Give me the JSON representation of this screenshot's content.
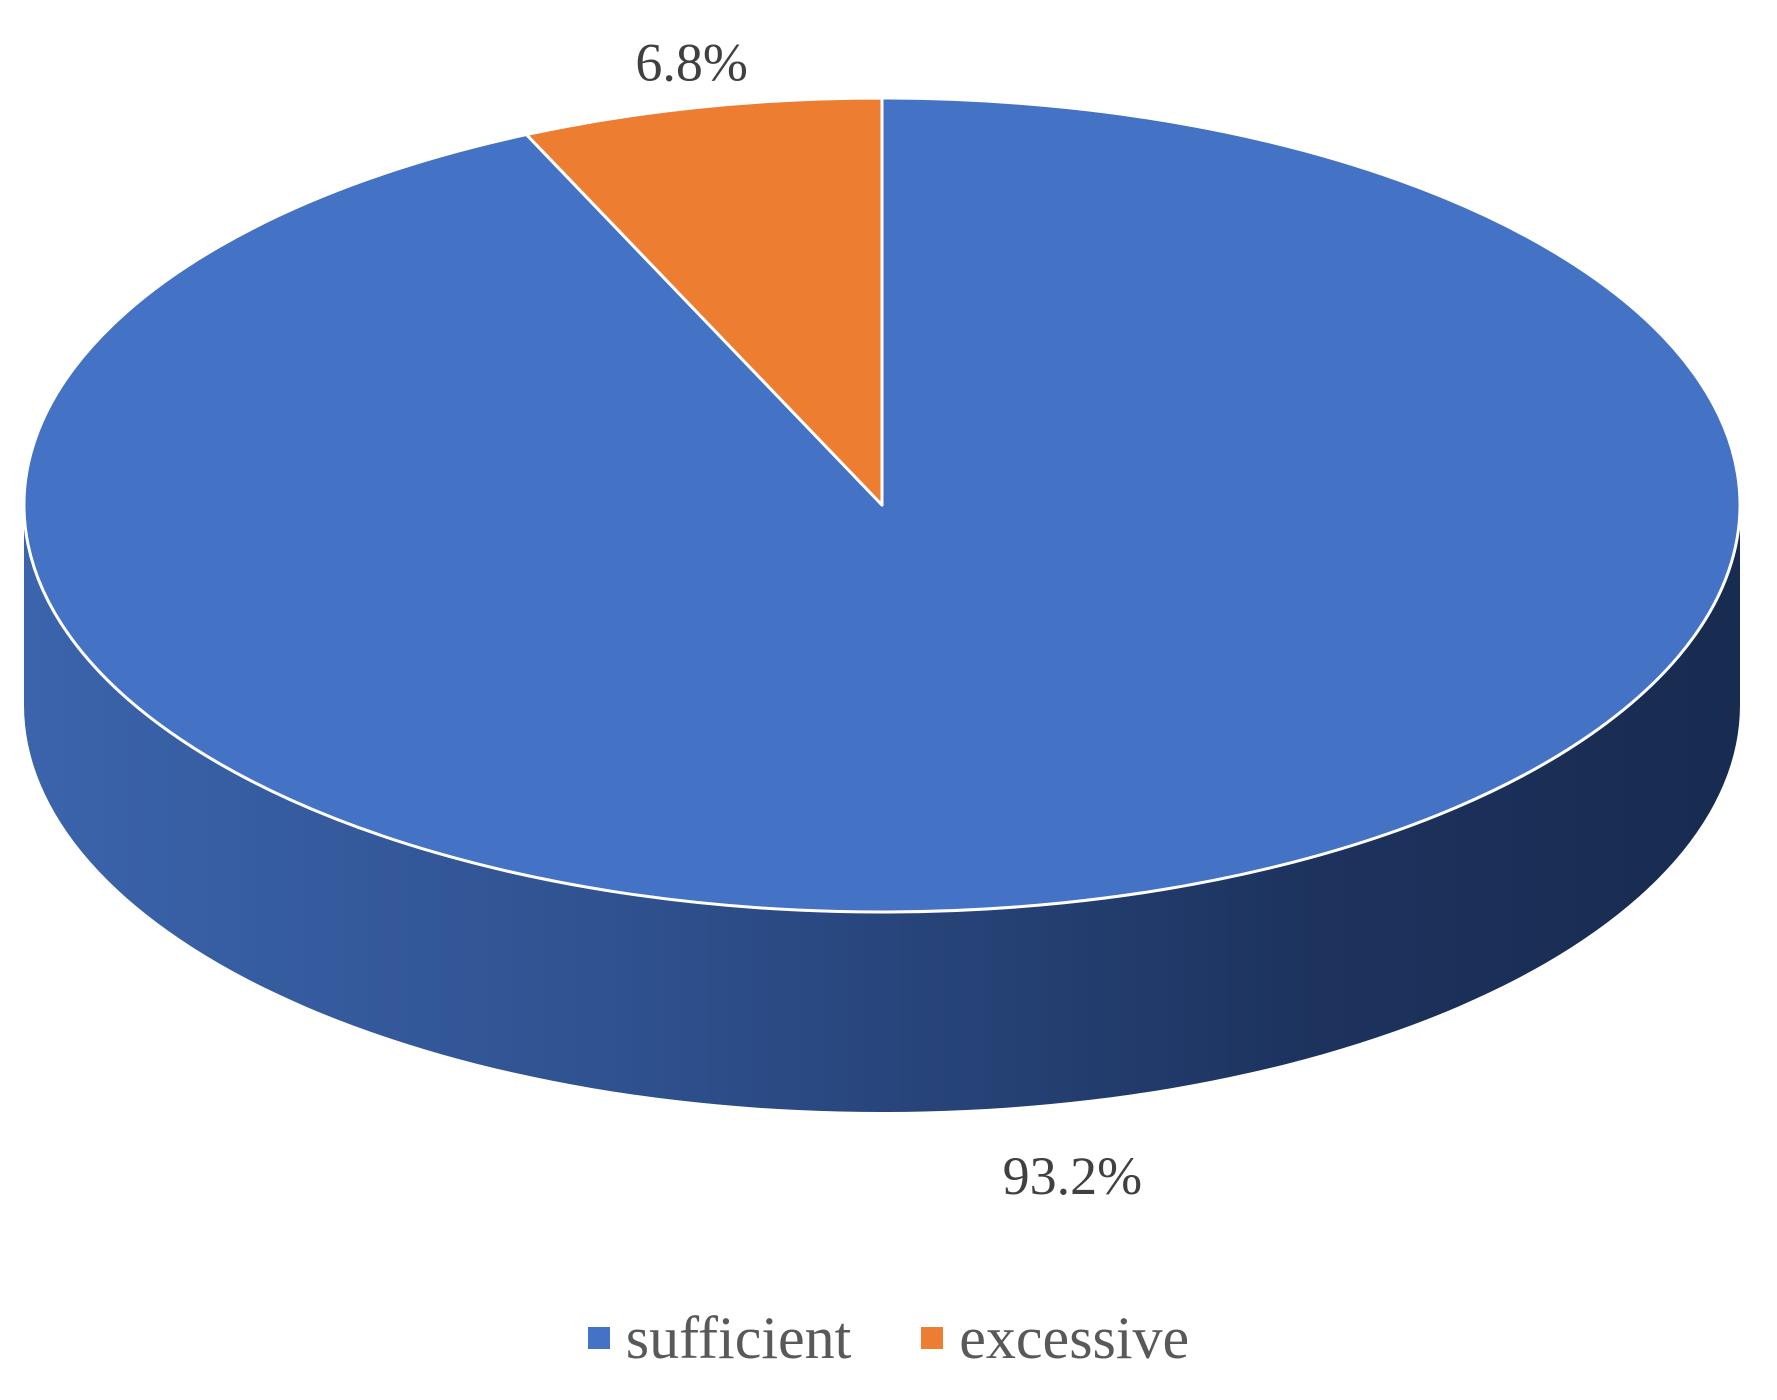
{
  "chart_data": {
    "type": "pie",
    "style": "3d",
    "title": "",
    "slices": [
      {
        "label": "sufficient",
        "value": 93.2,
        "display": "93.2%",
        "color": "#4472C4"
      },
      {
        "label": "excessive",
        "value": 6.8,
        "display": "6.8%",
        "color": "#ED7D31"
      }
    ],
    "legend": {
      "position": "bottom",
      "items": [
        {
          "label": "sufficient",
          "color": "#4472C4"
        },
        {
          "label": "excessive",
          "color": "#ED7D31"
        }
      ]
    }
  }
}
